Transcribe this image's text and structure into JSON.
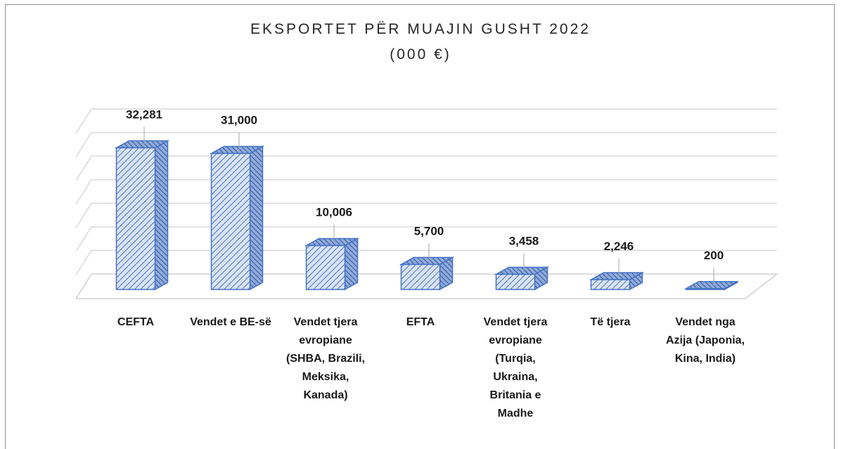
{
  "chart_data": {
    "type": "bar3d",
    "title": "EKSPORTET PËR MUAJIN GUSHT 2022",
    "subtitle": "(000 €)",
    "categories": [
      "CEFTA",
      "Vendet e BE-së",
      "Vendet tjera evropiane (SHBA, Brazili, Meksika, Kanada)",
      "EFTA",
      "Vendet tjera evropiane (Turqia, Ukraina, Britania e Madhe",
      "Të tjera",
      "Vendet nga Azija (Japonia, Kina, India)"
    ],
    "values": [
      32281,
      31000,
      10006,
      5700,
      3458,
      2246,
      200
    ],
    "value_labels": [
      "32,281",
      "31,000",
      "10,006",
      "5,700",
      "3,458",
      "2,246",
      "200"
    ],
    "color": "#4472c4",
    "ylim": [
      0,
      35000
    ],
    "yticks": [
      0,
      5000,
      10000,
      15000,
      20000,
      25000,
      30000,
      35000
    ],
    "grid": true
  }
}
